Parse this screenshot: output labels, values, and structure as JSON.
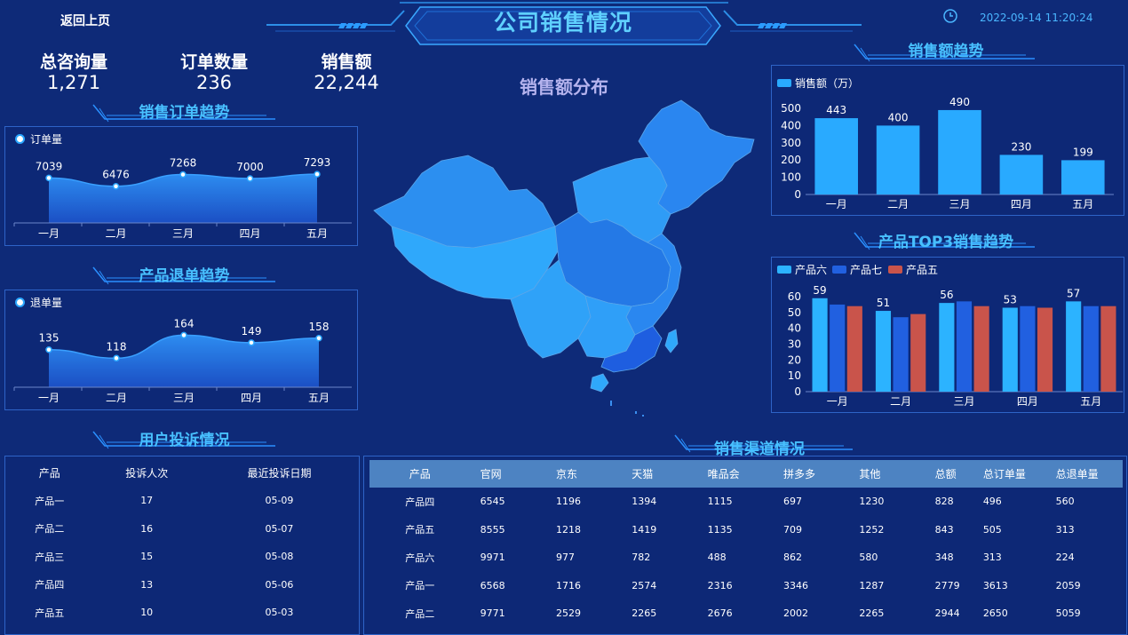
{
  "header": {
    "back_label": "返回上页",
    "title": "公司销售情况",
    "datetime": "2022-09-14 11:20:24"
  },
  "stats": [
    {
      "label": "总咨询量",
      "value": "1,271"
    },
    {
      "label": "订单数量",
      "value": "236"
    },
    {
      "label": "销售额",
      "value": "22,244"
    }
  ],
  "sections": {
    "order_trend": "销售订单趋势",
    "refund_trend": "产品退单趋势",
    "map": "销售额分布",
    "sales_trend": "销售额趋势",
    "top3": "产品TOP3销售趋势",
    "complaints": "用户投诉情况",
    "channels": "销售渠道情况"
  },
  "chart_data": [
    {
      "type": "area",
      "series": [
        {
          "name": "订单量",
          "values": [
            7039,
            6476,
            7268,
            7000,
            7293
          ]
        }
      ],
      "categories": [
        "一月",
        "二月",
        "三月",
        "四月",
        "五月"
      ]
    },
    {
      "type": "area",
      "series": [
        {
          "name": "退单量",
          "values": [
            135,
            118,
            164,
            149,
            158
          ]
        }
      ],
      "categories": [
        "一月",
        "二月",
        "三月",
        "四月",
        "五月"
      ]
    },
    {
      "type": "bar",
      "series": [
        {
          "name": "销售额（万）",
          "values": [
            443,
            400,
            490,
            230,
            199
          ]
        }
      ],
      "categories": [
        "一月",
        "二月",
        "三月",
        "四月",
        "五月"
      ],
      "yticks": [
        "0",
        "100",
        "200",
        "300",
        "400",
        "500"
      ],
      "ylim": [
        0,
        500
      ]
    },
    {
      "type": "bar",
      "series": [
        {
          "name": "产品六",
          "values": [
            59,
            51,
            56,
            53,
            57
          ]
        },
        {
          "name": "产品七",
          "values": [
            55,
            47,
            57,
            54,
            54
          ]
        },
        {
          "name": "产品五",
          "values": [
            54,
            49,
            54,
            53,
            54
          ]
        }
      ],
      "categories": [
        "一月",
        "二月",
        "三月",
        "四月",
        "五月"
      ],
      "yticks": [
        "0",
        "10",
        "20",
        "30",
        "40",
        "50",
        "60"
      ],
      "ylim": [
        0,
        60
      ]
    }
  ],
  "colors": {
    "bar": "#29aaff",
    "p6": "#2cb3ff",
    "p7": "#2160e0",
    "p5": "#c9544b",
    "accent": "#48c0ff",
    "bg": "#0e2a78"
  },
  "complaints": {
    "headers": [
      "产品",
      "投诉人次",
      "最近投诉日期"
    ],
    "rows": [
      [
        "产品一",
        "17",
        "05-09"
      ],
      [
        "产品二",
        "16",
        "05-07"
      ],
      [
        "产品三",
        "15",
        "05-08"
      ],
      [
        "产品四",
        "13",
        "05-06"
      ],
      [
        "产品五",
        "10",
        "05-03"
      ]
    ]
  },
  "channels": {
    "headers": [
      "产品",
      "官网",
      "京东",
      "天猫",
      "唯品会",
      "拼多多",
      "其他",
      "总额",
      "总订单量",
      "总退单量"
    ],
    "rows": [
      [
        "产品四",
        "6545",
        "1196",
        "1394",
        "1115",
        "697",
        "1230",
        "828",
        "496",
        "560"
      ],
      [
        "产品五",
        "8555",
        "1218",
        "1419",
        "1135",
        "709",
        "1252",
        "843",
        "505",
        "313"
      ],
      [
        "产品六",
        "9971",
        "977",
        "782",
        "488",
        "862",
        "580",
        "348",
        "313",
        "224"
      ],
      [
        "产品一",
        "6568",
        "1716",
        "2574",
        "2316",
        "3346",
        "1287",
        "2779",
        "3613",
        "2059"
      ],
      [
        "产品二",
        "9771",
        "2529",
        "2265",
        "2676",
        "2002",
        "2265",
        "2944",
        "2650",
        "5059"
      ]
    ]
  }
}
